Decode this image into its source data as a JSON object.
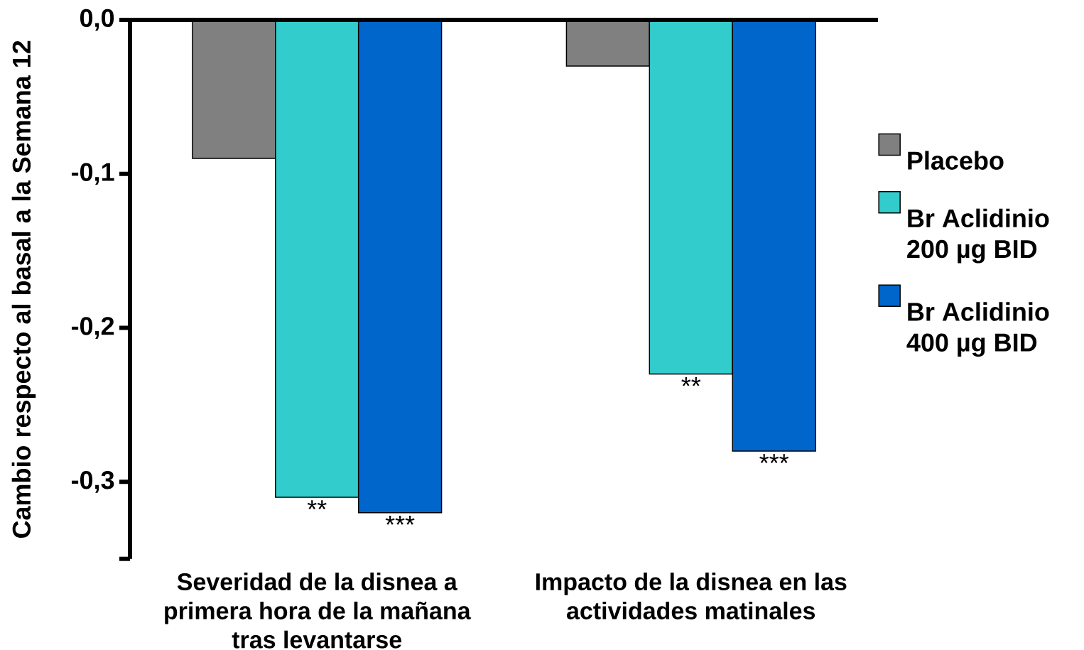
{
  "chart_data": {
    "type": "bar",
    "ylabel": "Cambio respecto al basal a la Semana 12",
    "categories": [
      "Severidad de la disnea a primera hora de la mañana tras levantarse",
      "Impacto de la disnea en las actividades matinales"
    ],
    "series": [
      {
        "name": "Placebo",
        "color": "#808080",
        "values": [
          -0.09,
          -0.03
        ]
      },
      {
        "name": "Br Aclidinio 200 µg BID",
        "color": "#33cccc",
        "values": [
          -0.31,
          -0.23
        ],
        "value_labels": [
          "**",
          "**"
        ]
      },
      {
        "name": "Br Aclidinio 400 µg BID",
        "color": "#0066cc",
        "values": [
          -0.32,
          -0.28
        ],
        "value_labels": [
          "***",
          "***"
        ]
      }
    ],
    "ylim": [
      -0.35,
      0
    ],
    "yticks": [
      {
        "value": 0,
        "label": "0,0"
      },
      {
        "value": -0.1,
        "label": "-0,1"
      },
      {
        "value": -0.2,
        "label": "-0,2"
      },
      {
        "value": -0.3,
        "label": "-0,3"
      }
    ],
    "legend": "right"
  }
}
